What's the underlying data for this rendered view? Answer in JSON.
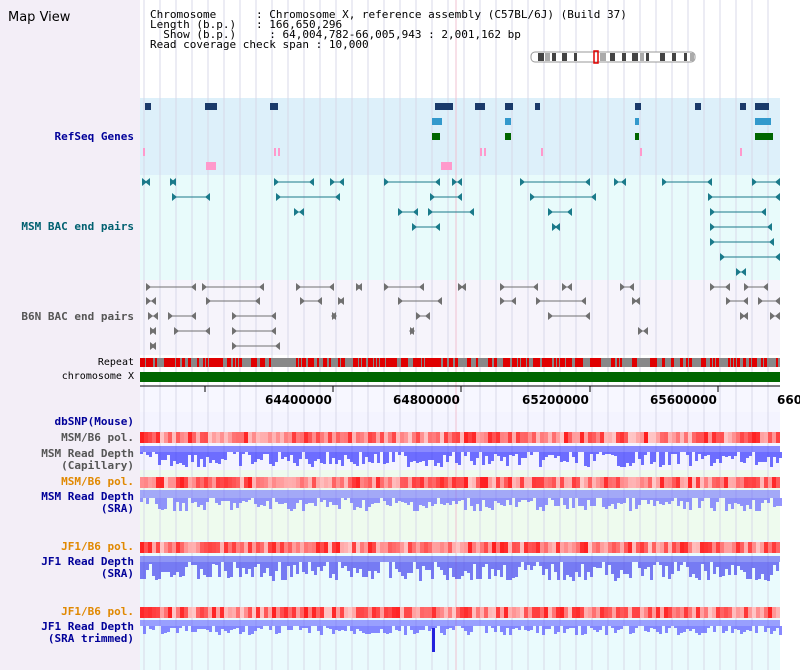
{
  "view": {
    "title": "Map View"
  },
  "info": {
    "chromosome_key": "Chromosome",
    "chromosome_val": "Chromosome X, reference assembly (C57BL/6J) (Build 37)",
    "length_key": "Length (b.p.)",
    "length_val": "166,650,296",
    "show_key": "Show (b.p.)",
    "show_val": "64,004,782-66,005,943 : 2,001,162 bp",
    "span_key": "Read coverage check span",
    "span_val": "10,000"
  },
  "tracks": {
    "refseq": "RefSeq Genes",
    "msm_bac": "MSM BAC end pairs",
    "b6n_bac": "B6N BAC end pairs",
    "repeat": "Repeat",
    "chromosome": "chromosome X",
    "dbsnp": "dbSNP(Mouse)",
    "msm_pol": "MSM/B6 pol.",
    "msm_read_cap_1": "MSM Read Depth",
    "msm_read_cap_2": "(Capillary)",
    "msm_pol2": "MSM/B6 pol.",
    "msm_read_sra_1": "MSM Read Depth",
    "msm_read_sra_2": "(SRA)",
    "jf1_pol": "JF1/B6 pol.",
    "jf1_read_1": "JF1 Read Depth",
    "jf1_read_2": "(SRA)",
    "jf1_pol2": "JF1/B6 pol.",
    "jf1_trim_1": "JF1 Read Depth",
    "jf1_trim_2": "(SRA trimmed)"
  },
  "ruler": {
    "ticks": [
      "64400000",
      "64800000",
      "65200000",
      "65600000",
      "660"
    ]
  },
  "colors": {
    "refseq_bg": "#ddf0fa",
    "msm_bg": "#e8fbfb",
    "b6n_bg": "#f6f4fb",
    "sra_bg": "#eefbee",
    "chromosome": "#006600",
    "repeat": "#e00000",
    "depth": "#3333ff",
    "pol": "#ff6666"
  }
}
